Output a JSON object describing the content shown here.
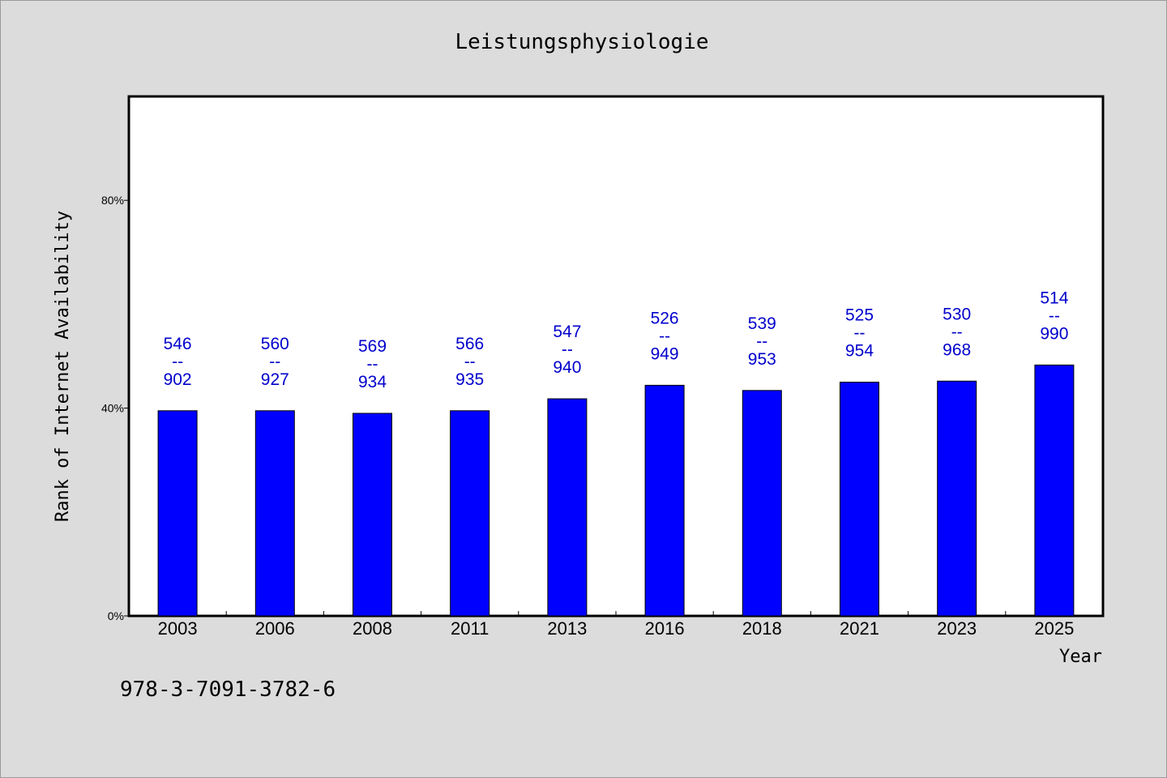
{
  "chart_data": {
    "type": "bar",
    "title": "Leistungsphysiologie",
    "xlabel": "Year",
    "ylabel": "Rank of Internet Availability",
    "ytick_labels": [
      "0%",
      "40%",
      "80%"
    ],
    "ytick_values": [
      0,
      40,
      80
    ],
    "ylim": [
      0,
      100
    ],
    "grid": false,
    "bar_color": "#0000ff",
    "label_color": "#0000cc",
    "categories": [
      "2003",
      "2006",
      "2008",
      "2011",
      "2013",
      "2016",
      "2018",
      "2021",
      "2023",
      "2025"
    ],
    "values": [
      39.5,
      39.5,
      39.0,
      39.5,
      41.8,
      44.4,
      43.4,
      45.0,
      45.2,
      48.3
    ],
    "bar_labels": [
      [
        "546",
        "--",
        "902"
      ],
      [
        "560",
        "--",
        "927"
      ],
      [
        "569",
        "--",
        "934"
      ],
      [
        "566",
        "--",
        "935"
      ],
      [
        "547",
        "--",
        "940"
      ],
      [
        "526",
        "--",
        "949"
      ],
      [
        "539",
        "--",
        "953"
      ],
      [
        "525",
        "--",
        "954"
      ],
      [
        "530",
        "--",
        "968"
      ],
      [
        "514",
        "--",
        "990"
      ]
    ]
  },
  "footnote": "978-3-7091-3782-6"
}
